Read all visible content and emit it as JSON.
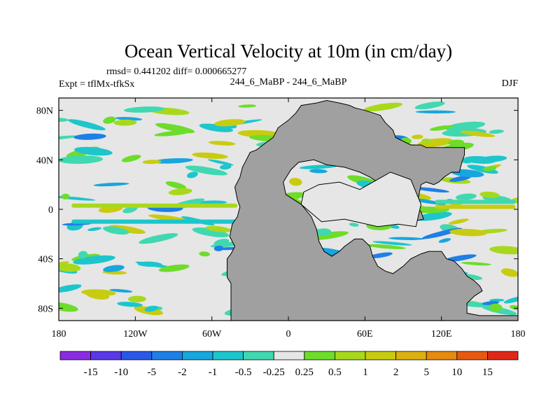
{
  "chart_data": {
    "type": "heatmap",
    "title": "Ocean Vertical Velocity at 10m (in cm/day)",
    "stats_text": "rmsd= 0.441202 diff= 0.000665277",
    "left_label": "Expt = tflMx-tfkSx",
    "center_label": "244_6_MaBP - 244_6_MaBP",
    "right_label": "DJF",
    "xlabel": "",
    "ylabel": "",
    "xlim": [
      -180,
      180
    ],
    "ylim": [
      -90,
      90
    ],
    "x_ticks": [
      {
        "value": -180,
        "label": "180"
      },
      {
        "value": -120,
        "label": "120W"
      },
      {
        "value": -60,
        "label": "60W"
      },
      {
        "value": 0,
        "label": "0"
      },
      {
        "value": 60,
        "label": "60E"
      },
      {
        "value": 120,
        "label": "120E"
      },
      {
        "value": 180,
        "label": "180"
      }
    ],
    "y_ticks": [
      {
        "value": 80,
        "label": "80N"
      },
      {
        "value": 40,
        "label": "40N"
      },
      {
        "value": 0,
        "label": "0"
      },
      {
        "value": -40,
        "label": "40S"
      },
      {
        "value": -80,
        "label": "80S"
      }
    ],
    "colorbar": {
      "colors": [
        "#8a2be2",
        "#5a38e6",
        "#2a58e6",
        "#1e7fe6",
        "#17a6dd",
        "#1cc6cc",
        "#40d8b0",
        "#e6e6e6",
        "#6edc2a",
        "#a8d81e",
        "#c8cc10",
        "#dcb010",
        "#e68a10",
        "#e65a10",
        "#e02818"
      ],
      "labels": [
        "-15",
        "-10",
        "-5",
        "-2",
        "-1",
        "-0.5",
        "-0.25",
        "0.25",
        "0.5",
        "1",
        "2",
        "5",
        "10",
        "15"
      ]
    },
    "land_color": "#a0a0a0",
    "ocean_background": "#e6e6e6",
    "continents": [
      [
        [
          -45,
          -90
        ],
        [
          -45,
          -60
        ],
        [
          -48,
          -55
        ],
        [
          -48,
          -40
        ],
        [
          -45,
          -36
        ],
        [
          -42,
          -30
        ],
        [
          -46,
          -22
        ],
        [
          -44,
          -12
        ],
        [
          -40,
          -6
        ],
        [
          -38,
          2
        ],
        [
          -40,
          8
        ],
        [
          -42,
          18
        ],
        [
          -38,
          26
        ],
        [
          -36,
          34
        ],
        [
          -33,
          40
        ],
        [
          -30,
          46
        ],
        [
          -25,
          48
        ],
        [
          -20,
          52
        ],
        [
          -12,
          58
        ],
        [
          -8,
          66
        ],
        [
          0,
          72
        ],
        [
          6,
          78
        ],
        [
          10,
          84
        ],
        [
          22,
          86
        ],
        [
          30,
          88
        ],
        [
          40,
          86
        ],
        [
          48,
          84
        ],
        [
          52,
          82
        ],
        [
          60,
          80
        ],
        [
          72,
          76
        ],
        [
          76,
          70
        ],
        [
          82,
          64
        ],
        [
          84,
          58
        ],
        [
          96,
          52
        ],
        [
          104,
          52
        ],
        [
          108,
          50
        ],
        [
          118,
          50
        ],
        [
          128,
          50
        ],
        [
          138,
          50
        ],
        [
          138,
          44
        ],
        [
          136,
          38
        ],
        [
          134,
          30
        ],
        [
          128,
          30
        ],
        [
          122,
          26
        ],
        [
          118,
          22
        ],
        [
          114,
          20
        ],
        [
          108,
          22
        ],
        [
          104,
          20
        ],
        [
          102,
          10
        ],
        [
          96,
          6
        ],
        [
          104,
          -2
        ],
        [
          106,
          -8
        ],
        [
          96,
          -10
        ],
        [
          90,
          -4
        ],
        [
          86,
          4
        ],
        [
          78,
          12
        ],
        [
          70,
          22
        ],
        [
          64,
          26
        ],
        [
          56,
          30
        ],
        [
          44,
          34
        ],
        [
          30,
          36
        ],
        [
          20,
          40
        ],
        [
          8,
          38
        ],
        [
          2,
          32
        ],
        [
          -4,
          22
        ],
        [
          -2,
          12
        ],
        [
          10,
          4
        ],
        [
          18,
          -6
        ],
        [
          22,
          -16
        ],
        [
          24,
          -26
        ],
        [
          28,
          -34
        ],
        [
          34,
          -38
        ],
        [
          40,
          -34
        ],
        [
          44,
          -30
        ],
        [
          52,
          -24
        ],
        [
          58,
          -24
        ],
        [
          64,
          -30
        ],
        [
          66,
          -38
        ],
        [
          70,
          -46
        ],
        [
          76,
          -50
        ],
        [
          82,
          -52
        ],
        [
          90,
          -46
        ],
        [
          96,
          -40
        ],
        [
          104,
          -36
        ],
        [
          110,
          -34
        ],
        [
          120,
          -34
        ],
        [
          124,
          -40
        ],
        [
          130,
          -42
        ],
        [
          136,
          -48
        ],
        [
          140,
          -54
        ],
        [
          146,
          -58
        ],
        [
          150,
          -62
        ],
        [
          152,
          -66
        ],
        [
          146,
          -70
        ],
        [
          140,
          -76
        ],
        [
          140,
          -84
        ],
        [
          150,
          -86
        ],
        [
          165,
          -86
        ],
        [
          180,
          -86
        ],
        [
          180,
          -90
        ]
      ],
      [
        [
          24,
          20
        ],
        [
          40,
          22
        ],
        [
          56,
          16
        ],
        [
          80,
          30
        ],
        [
          96,
          24
        ],
        [
          104,
          4
        ],
        [
          100,
          -14
        ],
        [
          86,
          -12
        ],
        [
          70,
          -14
        ],
        [
          44,
          -8
        ],
        [
          26,
          -10
        ],
        [
          10,
          4
        ],
        [
          12,
          14
        ]
      ]
    ]
  }
}
